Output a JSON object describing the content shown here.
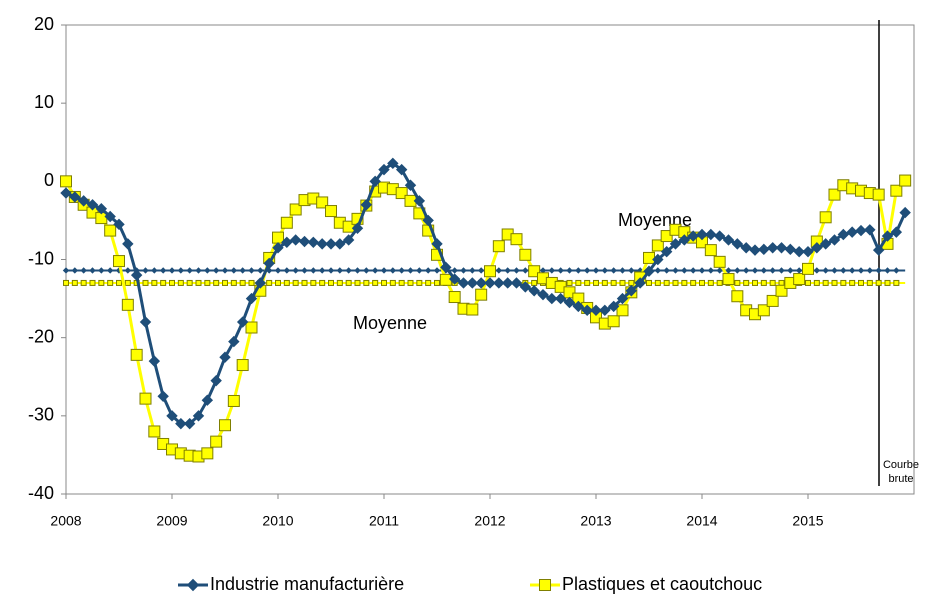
{
  "chart_data": {
    "type": "line",
    "categories": [
      "2008",
      null,
      null,
      null,
      null,
      null,
      null,
      null,
      null,
      null,
      null,
      null,
      "2009",
      null,
      null,
      null,
      null,
      null,
      null,
      null,
      null,
      null,
      null,
      null,
      "2010",
      null,
      null,
      null,
      null,
      null,
      null,
      null,
      null,
      null,
      null,
      null,
      "2011",
      null,
      null,
      null,
      null,
      null,
      null,
      null,
      null,
      null,
      null,
      null,
      "2012",
      null,
      null,
      null,
      null,
      null,
      null,
      null,
      null,
      null,
      null,
      null,
      "2013",
      null,
      null,
      null,
      null,
      null,
      null,
      null,
      null,
      null,
      null,
      null,
      "2014",
      null,
      null,
      null,
      null,
      null,
      null,
      null,
      null,
      null,
      null,
      null,
      "2015",
      null,
      null,
      null,
      null,
      null,
      null,
      null,
      null,
      null,
      null,
      null
    ],
    "series": [
      {
        "name": "Industrie manufacturière",
        "color": "#1f4e79",
        "marker": "diamond",
        "values": [
          -1.5,
          -2,
          -2.5,
          -3,
          -3.5,
          -4.5,
          -5.5,
          -8,
          -12,
          -18,
          -23,
          -27.5,
          -30,
          -31,
          -31,
          -30,
          -28,
          -25.5,
          -22.5,
          -20.5,
          -18,
          -15,
          -13,
          -10.5,
          -8.5,
          -7.8,
          -7.5,
          -7.7,
          -7.8,
          -8,
          -8,
          -8,
          -7.5,
          -6,
          -3,
          0,
          1.5,
          2.3,
          1.5,
          -0.5,
          -2.5,
          -5,
          -8,
          -11,
          -12.5,
          -13,
          -13,
          -13,
          -13,
          -13,
          -13,
          -13,
          -13.5,
          -14,
          -14.5,
          -15,
          -15,
          -15.5,
          -16,
          -16.5,
          -16.5,
          -16.5,
          -16,
          -15,
          -14,
          -13,
          -11.5,
          -10,
          -9,
          -8,
          -7.5,
          -7,
          -6.8,
          -6.8,
          -7,
          -7.5,
          -8,
          -8.5,
          -8.8,
          -8.7,
          -8.5,
          -8.5,
          -8.7,
          -9,
          -9,
          -8.5,
          -8,
          -7.5,
          -6.8,
          -6.5,
          -6.3,
          -6.2,
          -8.8,
          -7,
          -6.5,
          -4
        ]
      },
      {
        "name": "Plastiques et caoutchouc",
        "color": "#ffff00",
        "marker": "square",
        "marker_stroke": "#7f7f00",
        "values": [
          0,
          -2,
          -3,
          -4,
          -4.7,
          -6.3,
          -10.2,
          -15.8,
          -22.2,
          -27.8,
          -32,
          -33.6,
          -34.3,
          -34.8,
          -35.1,
          -35.2,
          -34.8,
          -33.3,
          -31.2,
          -28.1,
          -23.5,
          -18.7,
          -14,
          -9.8,
          -7.2,
          -5.3,
          -3.6,
          -2.4,
          -2.2,
          -2.7,
          -3.8,
          -5.3,
          -5.8,
          -4.8,
          -3.1,
          -1.3,
          -0.8,
          -1,
          -1.5,
          -2.5,
          -4.1,
          -6.3,
          -9.4,
          -12.6,
          -14.8,
          -16.3,
          -16.4,
          -14.5,
          -11.5,
          -8.3,
          -6.8,
          -7.4,
          -9.4,
          -11.5,
          -12.4,
          -13,
          -13.5,
          -14.2,
          -15,
          -16.2,
          -17.4,
          -18.2,
          -17.9,
          -16.5,
          -14.2,
          -12.3,
          -9.8,
          -8.2,
          -7,
          -6.2,
          -6.5,
          -7.2,
          -7.8,
          -8.8,
          -10.3,
          -12.5,
          -14.7,
          -16.5,
          -17,
          -16.5,
          -15.3,
          -14,
          -13,
          -12.5,
          -11.2,
          -7.7,
          -4.6,
          -1.7,
          -0.5,
          -0.9,
          -1.2,
          -1.5,
          -1.7,
          -8,
          -1.2,
          0.1
        ]
      }
    ],
    "means": [
      {
        "value": -11.4,
        "color": "#1f4e79",
        "marker": "diamond"
      },
      {
        "value": -13,
        "color": "#ffff00",
        "marker": "square",
        "marker_stroke": "#7f7f00"
      }
    ],
    "annotations": [
      "Moyenne",
      "Moyenne",
      "Courbe brute"
    ],
    "ylim": [
      -40,
      20
    ],
    "yticks": [
      -40,
      -30,
      -20,
      -10,
      0,
      10,
      20
    ],
    "grid": false
  }
}
